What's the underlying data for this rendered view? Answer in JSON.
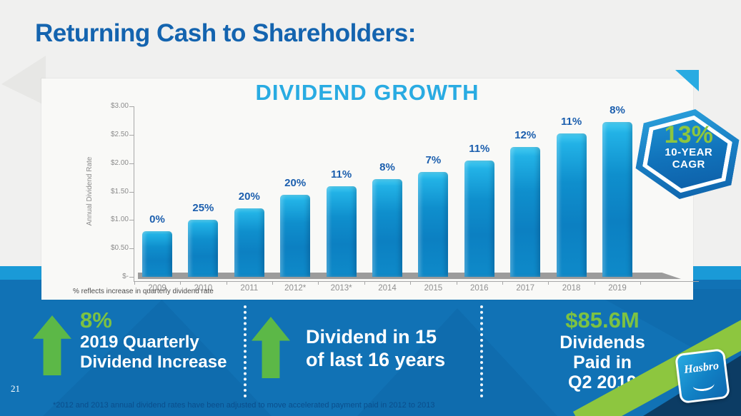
{
  "slide": {
    "title": "Returning Cash to Shareholders:",
    "page_number": "21",
    "footnote": "*2012 and 2013 annual dividend rates have been adjusted to move accelerated payment paid in 2012 to 2013"
  },
  "colors": {
    "title_blue": "#1464AF",
    "chart_title_blue": "#29ABE2",
    "bar_top": "#45CCF2",
    "bar_bottom": "#0C80C2",
    "pct_label_blue": "#1C5FAE",
    "band_blue": "#1172B5",
    "band_strip_blue": "#1A9AD7",
    "arrow_green": "#5CB847",
    "highlight_green": "#7DC242",
    "ribbon_green": "#8DC63F",
    "corner_navy": "#0C3C64"
  },
  "chart_data": {
    "type": "bar",
    "title": "DIVIDEND GROWTH",
    "ylabel": "Annual Dividend Rate",
    "xlabel": "",
    "ylim": [
      0,
      3.0
    ],
    "grid": false,
    "legend": null,
    "ytick_values": [
      3.0,
      2.5,
      2.0,
      1.5,
      1.0,
      0.5,
      0
    ],
    "ytick_labels": [
      "$3.00",
      "$2.50",
      "$2.00",
      "$1.50",
      "$1.00",
      "$0.50",
      "$-"
    ],
    "categories": [
      "2009",
      "2010",
      "2011",
      "2012*",
      "2013*",
      "2014",
      "2015",
      "2016",
      "2017",
      "2018",
      "2019"
    ],
    "values": [
      0.8,
      1.0,
      1.2,
      1.44,
      1.6,
      1.72,
      1.84,
      2.04,
      2.28,
      2.52,
      2.72
    ],
    "bar_labels": [
      "0%",
      "25%",
      "20%",
      "20%",
      "11%",
      "8%",
      "7%",
      "11%",
      "12%",
      "11%",
      "8%"
    ],
    "footnote": "% reflects increase in quarterly dividend rate"
  },
  "badge": {
    "value": "13%",
    "line1": "10-YEAR",
    "line2": "CAGR"
  },
  "callouts": [
    {
      "highlight": "8%",
      "lines": [
        "2019 Quarterly",
        "Dividend Increase"
      ]
    },
    {
      "highlight": "",
      "lines": [
        "Dividend in 15",
        "of last 16 years"
      ]
    },
    {
      "highlight": "$85.6M",
      "lines": [
        "Dividends",
        "Paid in",
        "Q2 2019"
      ]
    }
  ],
  "logo": {
    "text": "Hasbro"
  }
}
